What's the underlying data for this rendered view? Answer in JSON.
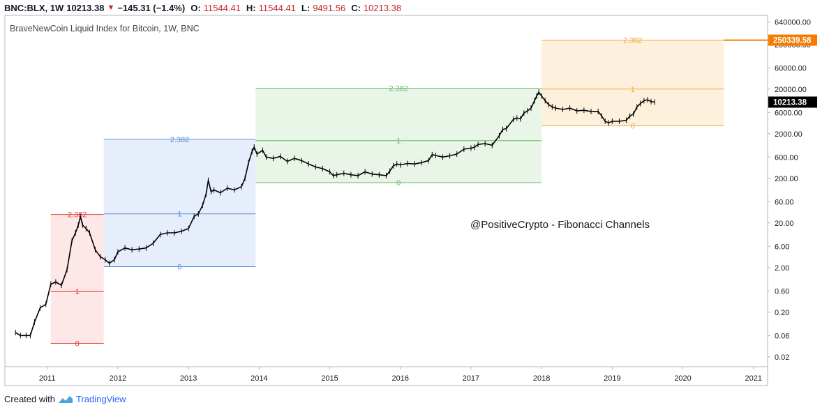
{
  "header": {
    "symbol": "BNC:BLX, 1W",
    "last": "10213.38",
    "change": "−145.31 (−1.4%)",
    "open_label": "O:",
    "open": "11544.41",
    "high_label": "H:",
    "high": "11544.41",
    "low_label": "L:",
    "low": "9491.56",
    "close_label": "C:",
    "close": "10213.38",
    "down_color": "#c62828"
  },
  "footer": {
    "created_with": "Created with",
    "brand": "TradingView"
  },
  "chart_data": {
    "type": "line",
    "title": "BraveNewCoin Liquid Index for Bitcoin, 1W, BNC",
    "annotation": "@PositiveCrypto - Fibonacci Channels",
    "y_scale": "log",
    "ylim": [
      0.012,
      900000
    ],
    "y_ticks": [
      {
        "v": 640000,
        "label": "640000.00"
      },
      {
        "v": 200000,
        "label": "200000.00"
      },
      {
        "v": 60000,
        "label": "60000.00"
      },
      {
        "v": 20000,
        "label": "20000.00"
      },
      {
        "v": 6000,
        "label": "6000.00"
      },
      {
        "v": 2000,
        "label": "2000.00"
      },
      {
        "v": 600,
        "label": "600.00"
      },
      {
        "v": 200,
        "label": "200.00"
      },
      {
        "v": 60,
        "label": "60.00"
      },
      {
        "v": 20,
        "label": "20.00"
      },
      {
        "v": 6,
        "label": "6.00"
      },
      {
        "v": 2,
        "label": "2.00"
      },
      {
        "v": 0.6,
        "label": "0.60"
      },
      {
        "v": 0.2,
        "label": "0.20"
      },
      {
        "v": 0.06,
        "label": "0.06"
      },
      {
        "v": 0.02,
        "label": "0.02"
      }
    ],
    "xlim": [
      2010.4,
      2021.2
    ],
    "x_ticks": [
      "2011",
      "2012",
      "2013",
      "2014",
      "2015",
      "2016",
      "2017",
      "2018",
      "2019",
      "2020",
      "2021"
    ],
    "price_labels": [
      {
        "v": 250339.58,
        "label": "250339.58",
        "color": "#f57c00"
      },
      {
        "v": 10213.38,
        "label": "10213.38",
        "color": "#000000"
      }
    ],
    "fib_channels": [
      {
        "x0": 2011.05,
        "x1": 2011.8,
        "fill": "#fde7e7",
        "color": "#e53935",
        "levels": [
          {
            "v": 0.04,
            "label": "0"
          },
          {
            "v": 0.58,
            "label": "1"
          },
          {
            "v": 31,
            "label": "2.382"
          }
        ]
      },
      {
        "x0": 2011.8,
        "x1": 2013.95,
        "fill": "#e6eefb",
        "color": "#5b8ed8",
        "levels": [
          {
            "v": 2.1,
            "label": "0"
          },
          {
            "v": 32,
            "label": "1"
          },
          {
            "v": 1500,
            "label": "2.382"
          }
        ]
      },
      {
        "x0": 2013.95,
        "x1": 2018.0,
        "fill": "#e9f5e6",
        "color": "#66bb6a",
        "levels": [
          {
            "v": 160,
            "label": "0"
          },
          {
            "v": 1400,
            "label": "1"
          },
          {
            "v": 21000,
            "label": "2.382"
          }
        ]
      },
      {
        "x0": 2018.0,
        "x1": 2020.58,
        "fill": "#fdf1dd",
        "color": "#f2a93b",
        "levels": [
          {
            "v": 3000,
            "label": "0"
          },
          {
            "v": 20000,
            "label": "1"
          },
          {
            "v": 250339.58,
            "label": "2.382"
          }
        ]
      }
    ],
    "series": [
      {
        "x": [
          2010.55,
          2010.62,
          2010.7,
          2010.76,
          2010.82,
          2010.9,
          2010.98,
          2011.05,
          2011.12,
          2011.2,
          2011.28,
          2011.35,
          2011.4,
          2011.44,
          2011.47,
          2011.5,
          2011.55,
          2011.6,
          2011.68,
          2011.75,
          2011.82,
          2011.88,
          2011.95,
          2012.0,
          2012.1,
          2012.2,
          2012.3,
          2012.4,
          2012.5,
          2012.6,
          2012.7,
          2012.8,
          2012.9,
          2013.0,
          2013.08,
          2013.14,
          2013.2,
          2013.25,
          2013.28,
          2013.32,
          2013.36,
          2013.45,
          2013.55,
          2013.65,
          2013.75,
          2013.8,
          2013.85,
          2013.9,
          2013.93,
          2013.97,
          2014.05,
          2014.1,
          2014.2,
          2014.3,
          2014.4,
          2014.5,
          2014.6,
          2014.7,
          2014.8,
          2014.9,
          2015.0,
          2015.05,
          2015.1,
          2015.2,
          2015.3,
          2015.4,
          2015.5,
          2015.6,
          2015.7,
          2015.8,
          2015.85,
          2015.9,
          2015.95,
          2016.0,
          2016.1,
          2016.2,
          2016.3,
          2016.4,
          2016.45,
          2016.5,
          2016.6,
          2016.7,
          2016.8,
          2016.9,
          2017.0,
          2017.05,
          2017.1,
          2017.2,
          2017.3,
          2017.4,
          2017.45,
          2017.5,
          2017.6,
          2017.65,
          2017.7,
          2017.75,
          2017.8,
          2017.85,
          2017.9,
          2017.93,
          2017.96,
          2018.0,
          2018.05,
          2018.1,
          2018.15,
          2018.2,
          2018.3,
          2018.4,
          2018.5,
          2018.6,
          2018.7,
          2018.8,
          2018.85,
          2018.9,
          2018.95,
          2019.0,
          2019.1,
          2019.2,
          2019.25,
          2019.3,
          2019.35,
          2019.4,
          2019.45,
          2019.5,
          2019.55,
          2019.6
        ],
        "y": [
          0.07,
          0.06,
          0.06,
          0.06,
          0.12,
          0.25,
          0.3,
          0.85,
          0.95,
          0.8,
          1.8,
          8,
          12,
          18,
          28,
          18,
          15,
          12,
          5,
          3.5,
          3,
          2.5,
          3,
          4.5,
          5.5,
          5,
          5.2,
          5.5,
          7,
          11,
          12,
          12,
          13,
          15,
          28,
          32,
          50,
          90,
          180,
          100,
          110,
          95,
          120,
          110,
          130,
          200,
          450,
          800,
          1000,
          700,
          850,
          600,
          560,
          620,
          480,
          560,
          500,
          420,
          360,
          330,
          280,
          230,
          240,
          260,
          240,
          230,
          280,
          250,
          240,
          230,
          290,
          380,
          420,
          400,
          430,
          420,
          450,
          500,
          680,
          650,
          600,
          640,
          700,
          900,
          950,
          1000,
          1150,
          1200,
          1100,
          1800,
          2500,
          2600,
          4200,
          4500,
          4300,
          5800,
          6500,
          7500,
          11000,
          14000,
          17000,
          14000,
          11000,
          9000,
          8000,
          7500,
          7000,
          7500,
          6500,
          6700,
          6300,
          6300,
          5000,
          3800,
          3500,
          3800,
          3800,
          4000,
          5000,
          5500,
          8000,
          9500,
          11000,
          11500,
          10500,
          10213.38
        ]
      }
    ]
  }
}
